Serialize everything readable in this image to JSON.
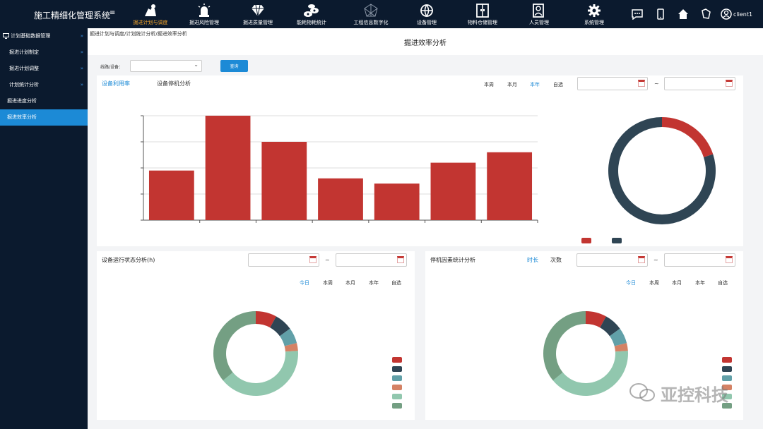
{
  "header": {
    "app_title": "施工精细化管理系统",
    "menu_icon": "hamburger-icon",
    "nav": [
      {
        "label": "掘进计划与调度",
        "icon": "worker-icon",
        "active": true
      },
      {
        "label": "掘进风险管理",
        "icon": "alarm-light-icon",
        "active": false
      },
      {
        "label": "掘进质量管理",
        "icon": "diamond-icon",
        "active": false
      },
      {
        "label": "能耗物耗统计",
        "icon": "pipes-icon",
        "active": false
      },
      {
        "label": "工程信息数字化",
        "icon": "network-icon",
        "active": false
      },
      {
        "label": "设备管理",
        "icon": "globe-icon",
        "active": false
      },
      {
        "label": "物料仓储管理",
        "icon": "warehouse-door-icon",
        "active": false
      },
      {
        "label": "人员管理",
        "icon": "person-card-icon",
        "active": false
      },
      {
        "label": "系统管理",
        "icon": "gear-icon",
        "active": false
      }
    ],
    "right_icons": [
      "chat-icon",
      "phone-icon",
      "home-icon",
      "shield-icon",
      "user-icon"
    ],
    "user": "client1"
  },
  "sidebar": {
    "items": [
      {
        "label": "计划基础数据管理",
        "icon": "monitor-icon",
        "chevron": "»",
        "active": false
      },
      {
        "label": "掘进计划制定",
        "chevron": "»",
        "active": false
      },
      {
        "label": "掘进计划调整",
        "chevron": "»",
        "active": false
      },
      {
        "label": "计划统计分析",
        "chevron": "»",
        "active": false
      },
      {
        "label": "掘进进度分析",
        "chevron": "",
        "active": false
      },
      {
        "label": "掘进效率分析",
        "chevron": "",
        "active": true
      }
    ]
  },
  "breadcrumb": "掘进计划与调度/计划统计分析/掘进效率分析",
  "page_title": "掘进效率分析",
  "filter": {
    "label": "线路/设备：",
    "value": "",
    "query_label": "查询"
  },
  "top_panel": {
    "tabs": [
      {
        "label": "设备利用率",
        "selected": true
      },
      {
        "label": "设备停机分析",
        "selected": false
      }
    ],
    "ranges": [
      {
        "label": "本周",
        "selected": false
      },
      {
        "label": "本月",
        "selected": false
      },
      {
        "label": "本年",
        "selected": true
      },
      {
        "label": "自选",
        "selected": false
      }
    ],
    "date_from": "",
    "date_to": "",
    "tilde": "~"
  },
  "bottom_left": {
    "title": "设备运行状态分析(h)",
    "date_from": "",
    "date_to": "",
    "tilde": "~",
    "ranges": [
      {
        "label": "今日",
        "selected": true
      },
      {
        "label": "本周",
        "selected": false
      },
      {
        "label": "本月",
        "selected": false
      },
      {
        "label": "本年",
        "selected": false
      },
      {
        "label": "自选",
        "selected": false
      }
    ]
  },
  "bottom_right": {
    "title": "停机因素统计分析",
    "tabs": [
      {
        "label": "时长",
        "selected": true
      },
      {
        "label": "次数",
        "selected": false
      }
    ],
    "date_from": "",
    "date_to": "",
    "tilde": "~",
    "ranges": [
      {
        "label": "今日",
        "selected": true
      },
      {
        "label": "本周",
        "selected": false
      },
      {
        "label": "本月",
        "selected": false
      },
      {
        "label": "本年",
        "selected": false
      },
      {
        "label": "自选",
        "selected": false
      }
    ]
  },
  "watermark": "亚控科技",
  "chart_data": [
    {
      "type": "bar",
      "categories": [
        "",
        "",
        "",
        "",
        "",
        "",
        ""
      ],
      "values": [
        47.5,
        100,
        75,
        40,
        35,
        55,
        65
      ],
      "ylim": [
        0,
        100
      ],
      "grid": true,
      "color": "#c23531"
    },
    {
      "type": "pie",
      "donut": true,
      "values": [
        20,
        80
      ],
      "colors": [
        "#c23531",
        "#2f4554"
      ],
      "legend": "bottom"
    },
    {
      "type": "pie",
      "donut": true,
      "values": [
        8,
        7,
        6,
        3,
        40,
        36
      ],
      "colors": [
        "#c23531",
        "#2f4554",
        "#61a0a8",
        "#d48265",
        "#91c7ae",
        "#749f83"
      ],
      "legend": "right"
    },
    {
      "type": "pie",
      "donut": true,
      "values": [
        8,
        7,
        6,
        3,
        40,
        36
      ],
      "colors": [
        "#c23531",
        "#2f4554",
        "#61a0a8",
        "#d48265",
        "#91c7ae",
        "#749f83"
      ],
      "legend": "right"
    }
  ]
}
